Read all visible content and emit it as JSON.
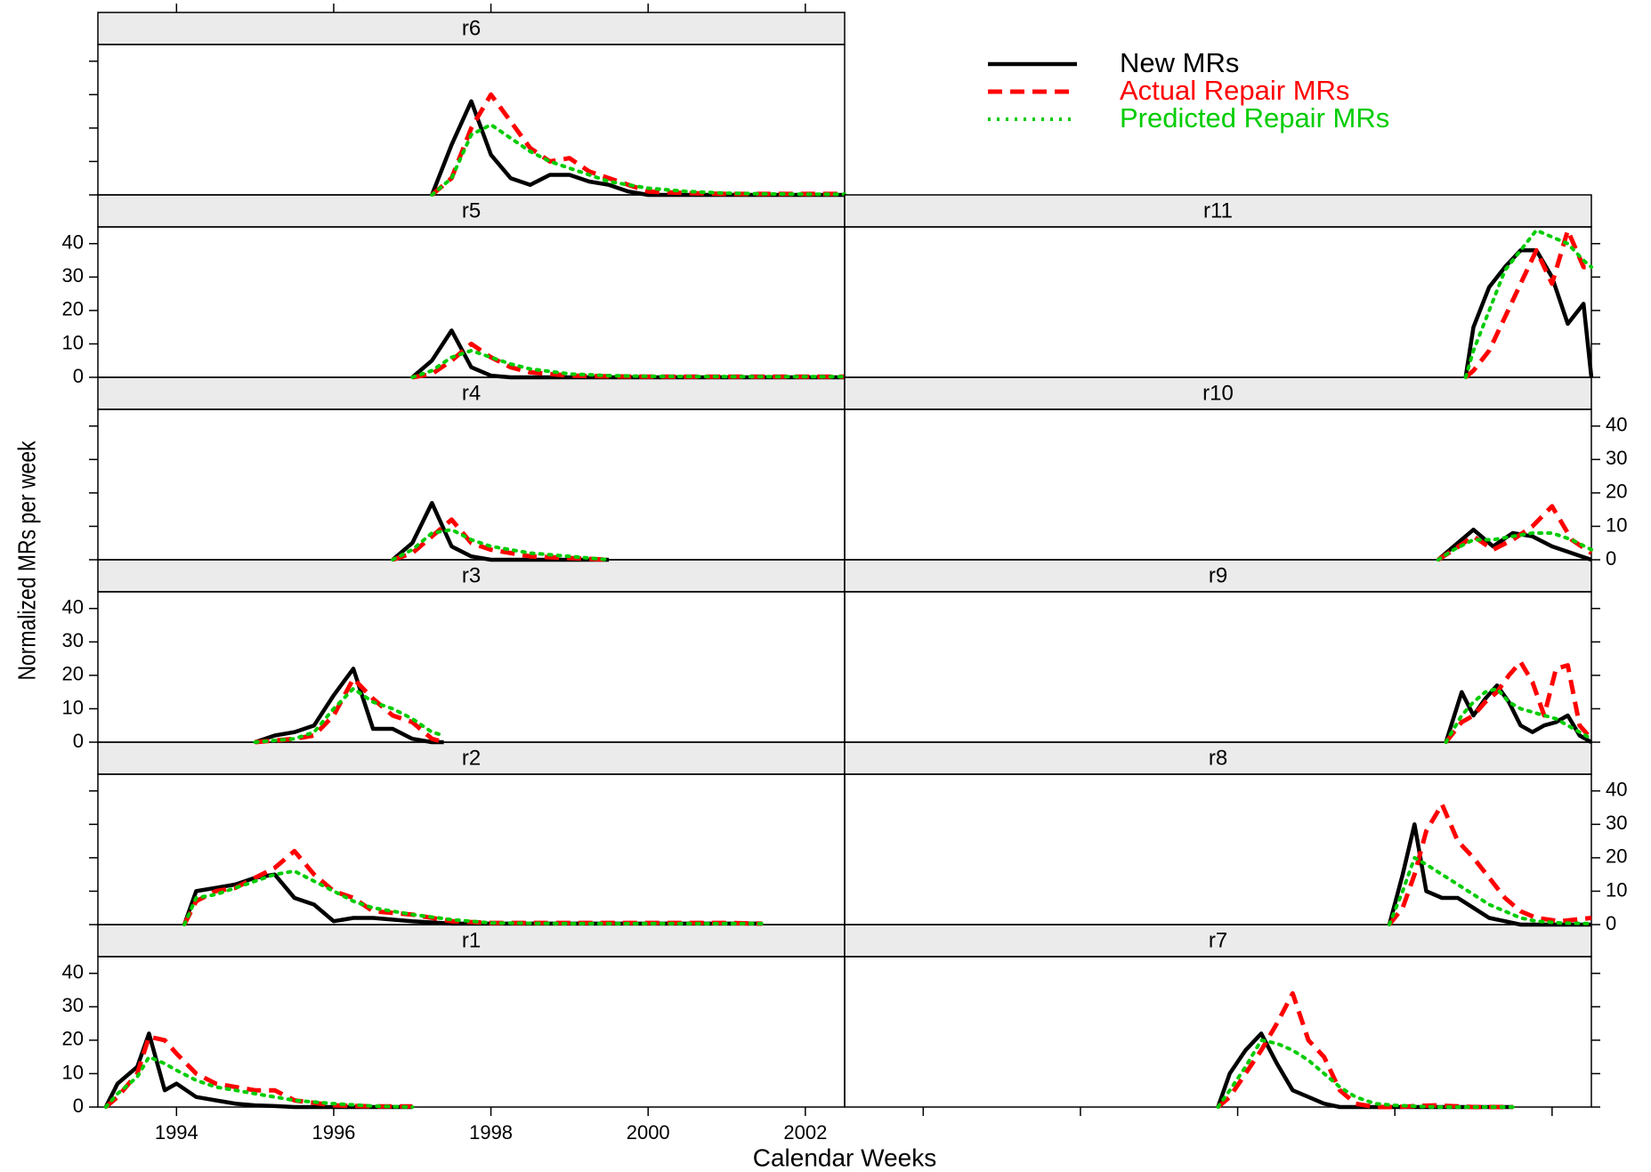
{
  "chart_data": {
    "type": "line",
    "xlabel": "Calendar Weeks",
    "ylabel": "Normalized MRs per week",
    "xlim": [
      1993,
      2002.5
    ],
    "ylim": [
      0,
      45
    ],
    "xticks": [
      1994,
      1996,
      1998,
      2000,
      2002
    ],
    "yticks": [
      0,
      10,
      20,
      30,
      40
    ],
    "legend": "top-right",
    "series": [
      {
        "name": "New MRs",
        "color": "#000000",
        "style": "solid"
      },
      {
        "name": "Actual Repair MRs",
        "color": "#ff0000",
        "style": "dashed"
      },
      {
        "name": "Predicted Repair MRs",
        "color": "#00cc00",
        "style": "dotted"
      }
    ],
    "panels": [
      {
        "title": "r1",
        "x": [
          1993.1,
          1993.25,
          1993.5,
          1993.65,
          1993.85,
          1994,
          1994.25,
          1994.5,
          1994.75,
          1995,
          1995.25,
          1995.5,
          1996,
          1996.5,
          1997
        ],
        "series": [
          {
            "values": [
              0,
              7,
              12,
              22,
              5,
              7,
              3,
              2,
              1,
              0.5,
              0.3,
              0,
              0,
              0,
              0
            ]
          },
          {
            "values": [
              0,
              3,
              10,
              21,
              20,
              16,
              10,
              7,
              6,
              5,
              5,
              2,
              0.5,
              0.2,
              0.2
            ]
          },
          {
            "values": [
              0,
              4,
              9,
              15,
              13,
              11,
              8,
              6,
              5,
              4,
              3,
              2,
              1,
              0.3,
              0
            ]
          }
        ]
      },
      {
        "title": "r2",
        "x": [
          1994.1,
          1994.25,
          1994.5,
          1994.75,
          1995,
          1995.25,
          1995.5,
          1995.75,
          1996,
          1996.25,
          1996.5,
          1997,
          1997.5,
          1998,
          1999,
          2000,
          2001,
          2001.45
        ],
        "series": [
          {
            "values": [
              0,
              10,
              11,
              12,
              14,
              15,
              8,
              6,
              1,
              2,
              2,
              1,
              0.3,
              0.3,
              0.3,
              0.3,
              0.3,
              0.3
            ]
          },
          {
            "values": [
              0,
              7,
              10,
              11,
              14,
              17,
              22,
              15,
              10,
              8,
              4,
              3,
              1,
              0.5,
              0.5,
              0.5,
              0.5,
              0.3
            ]
          },
          {
            "values": [
              0,
              8,
              9,
              11,
              13,
              15,
              16,
              13,
              10,
              7,
              5,
              3,
              1.5,
              0.5,
              0.3,
              0.3,
              0.3,
              0.3
            ]
          }
        ]
      },
      {
        "title": "r3",
        "x": [
          1995,
          1995.25,
          1995.5,
          1995.75,
          1996,
          1996.25,
          1996.5,
          1996.75,
          1997,
          1997.25,
          1997.4
        ],
        "series": [
          {
            "values": [
              0,
              2,
              3,
              5,
              14,
              22,
              4,
              4,
              1,
              0,
              0
            ]
          },
          {
            "values": [
              0,
              0.5,
              1,
              2,
              8,
              19,
              13,
              8,
              6,
              1,
              0
            ]
          },
          {
            "values": [
              0,
              0.5,
              1,
              3,
              10,
              16,
              12,
              10,
              7,
              3,
              2
            ]
          }
        ]
      },
      {
        "title": "r4",
        "x": [
          1996.75,
          1997,
          1997.25,
          1997.5,
          1997.75,
          1998,
          1998.5,
          1999,
          1999.5
        ],
        "series": [
          {
            "values": [
              0,
              5,
              17,
              4,
              1,
              0,
              0,
              0,
              0
            ]
          },
          {
            "values": [
              0,
              2,
              7,
              12,
              5,
              3,
              1,
              0.5,
              0
            ]
          },
          {
            "values": [
              0,
              3,
              8,
              9,
              6,
              4,
              2,
              1,
              0
            ]
          }
        ]
      },
      {
        "title": "r5",
        "x": [
          1997,
          1997.25,
          1997.5,
          1997.75,
          1998,
          1998.25,
          1998.5,
          1999,
          1999.5,
          2000,
          2001,
          2002,
          2002.5
        ],
        "series": [
          {
            "values": [
              0,
              5,
              14,
              3,
              0.5,
              0,
              0,
              0,
              0,
              0,
              0,
              0,
              0
            ]
          },
          {
            "values": [
              0,
              1,
              5,
              10,
              6,
              3,
              1.5,
              0.5,
              0.3,
              0.2,
              0.2,
              0.2,
              0.2
            ]
          },
          {
            "values": [
              0,
              2,
              6,
              8,
              6,
              4,
              2.5,
              1,
              0.5,
              0.3,
              0.2,
              0.2,
              0.2
            ]
          }
        ]
      },
      {
        "title": "r6",
        "x": [
          1997.25,
          1997.5,
          1997.75,
          1998,
          1998.25,
          1998.5,
          1998.75,
          1999,
          1999.25,
          1999.5,
          1999.75,
          2000,
          2000.5,
          2001,
          2001.5,
          2002,
          2002.5
        ],
        "series": [
          {
            "values": [
              0,
              15,
              28,
              12,
              5,
              3,
              6,
              6,
              4,
              3,
              1,
              0,
              0,
              0,
              0,
              0,
              0
            ]
          },
          {
            "values": [
              0,
              5,
              20,
              30,
              22,
              14,
              10,
              11,
              7,
              5,
              3,
              1,
              0.5,
              0.3,
              0.3,
              0.3,
              0.3
            ]
          },
          {
            "values": [
              0,
              5,
              18,
              21,
              17,
              13,
              10,
              8,
              6,
              4,
              3,
              2,
              1,
              0.5,
              0.3,
              0.2,
              0.2
            ]
          }
        ]
      },
      {
        "title": "r7",
        "x": [
          1997.75,
          1997.9,
          1998.1,
          1998.3,
          1998.5,
          1998.7,
          1998.9,
          1999.1,
          1999.3,
          1999.5,
          1999.75,
          2000,
          2000.5,
          2001,
          2001.5
        ],
        "series": [
          {
            "values": [
              0,
              10,
              17,
              22,
              13,
              5,
              3,
              1,
              0,
              0,
              0,
              0,
              0,
              0,
              0
            ]
          },
          {
            "values": [
              0,
              3,
              10,
              17,
              25,
              34,
              20,
              15,
              5,
              1,
              0,
              0,
              0.5,
              0,
              0
            ]
          },
          {
            "values": [
              0,
              5,
              12,
              20,
              19,
              17,
              14,
              10,
              6,
              3,
              1,
              0.5,
              0,
              0,
              0
            ]
          }
        ]
      },
      {
        "title": "r8",
        "x": [
          1999.93,
          2000.1,
          2000.25,
          2000.4,
          2000.6,
          2000.8,
          2001,
          2001.2,
          2001.4,
          2001.6,
          2001.8,
          2002.1,
          2002.5
        ],
        "series": [
          {
            "values": [
              0,
              15,
              30,
              10,
              8,
              8,
              5,
              2,
              1,
              0,
              0,
              0,
              0
            ]
          },
          {
            "values": [
              0,
              5,
              15,
              28,
              36,
              25,
              20,
              14,
              8,
              4,
              2,
              1,
              2
            ]
          },
          {
            "values": [
              0,
              10,
              20,
              18,
              15,
              12,
              9,
              6,
              4,
              2,
              1,
              0.5,
              0.3
            ]
          }
        ]
      },
      {
        "title": "r9",
        "x": [
          2000.65,
          2000.85,
          2001,
          2001.15,
          2001.3,
          2001.45,
          2001.6,
          2001.75,
          2001.9,
          2002.05,
          2002.2,
          2002.35,
          2002.5
        ],
        "series": [
          {
            "values": [
              0,
              15,
              8,
              13,
              17,
              12,
              5,
              3,
              5,
              6,
              8,
              2,
              0
            ]
          },
          {
            "values": [
              0,
              6,
              8,
              12,
              15,
              20,
              24,
              18,
              8,
              22,
              23,
              5,
              1
            ]
          },
          {
            "values": [
              0,
              8,
              12,
              15,
              16,
              12,
              10,
              9,
              8,
              7,
              5,
              3,
              1
            ]
          }
        ]
      },
      {
        "title": "r10",
        "x": [
          2000.55,
          2000.75,
          2001,
          2001.25,
          2001.5,
          2001.75,
          2002,
          2002.25,
          2002.5
        ],
        "series": [
          {
            "values": [
              0,
              4,
              9,
              4,
              8,
              7,
              4,
              2,
              0
            ]
          },
          {
            "values": [
              0,
              3,
              7,
              3,
              6,
              10,
              16,
              6,
              2
            ]
          },
          {
            "values": [
              0,
              3,
              6,
              6,
              7,
              8,
              8,
              6,
              3
            ]
          }
        ]
      },
      {
        "title": "r11",
        "x": [
          2000.9,
          2001,
          2001.2,
          2001.4,
          2001.6,
          2001.8,
          2002,
          2002.2,
          2002.4,
          2002.5
        ],
        "series": [
          {
            "values": [
              0,
              15,
              27,
              33,
              38,
              38,
              30,
              16,
              22,
              0
            ]
          },
          {
            "values": [
              0,
              2,
              8,
              18,
              28,
              38,
              28,
              44,
              33,
              33
            ]
          },
          {
            "values": [
              0,
              8,
              20,
              32,
              38,
              44,
              42,
              40,
              35,
              33
            ]
          }
        ]
      }
    ]
  }
}
